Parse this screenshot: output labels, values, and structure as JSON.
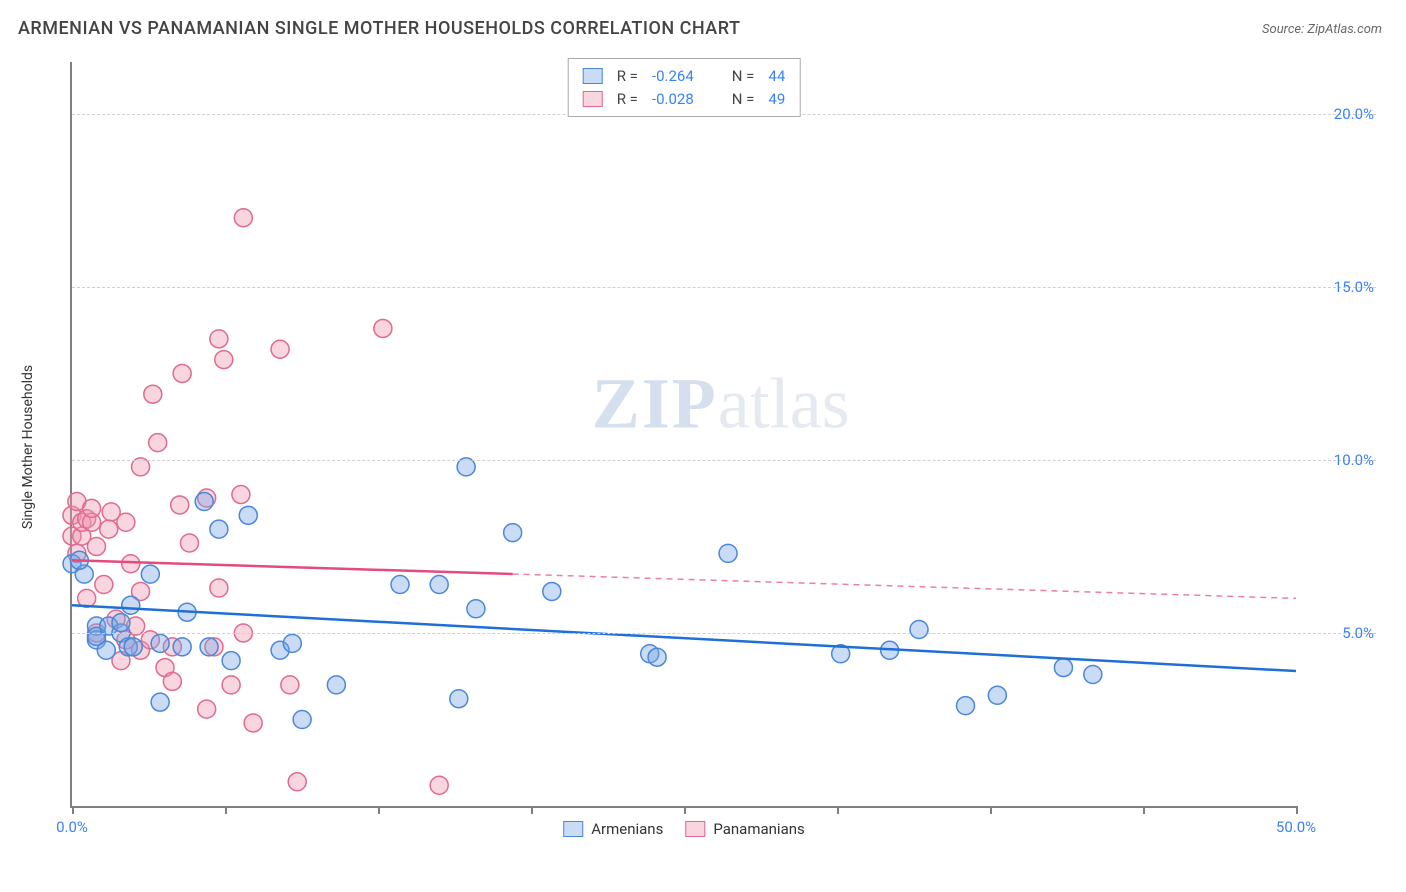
{
  "title": "ARMENIAN VS PANAMANIAN SINGLE MOTHER HOUSEHOLDS CORRELATION CHART",
  "source_label": "Source: ZipAtlas.com",
  "watermark_zip": "ZIP",
  "watermark_atlas": "atlas",
  "ylabel": "Single Mother Households",
  "chart": {
    "type": "scatter-with-regression",
    "background_color": "#ffffff",
    "grid_color": "#d0d0d0",
    "axis_color": "#808080",
    "marker_radius": 9,
    "marker_stroke_width": 1.5,
    "line_width": 2.5,
    "xlim": [
      0,
      50
    ],
    "ylim": [
      0,
      21.5
    ],
    "xticks": [
      0,
      6.25,
      12.5,
      18.75,
      25,
      31.25,
      37.5,
      43.75,
      50
    ],
    "x_labeled_ticks": [
      {
        "pos": 0,
        "label": "0.0%"
      },
      {
        "pos": 50,
        "label": "50.0%"
      }
    ],
    "yticks": [
      {
        "pos": 5,
        "label": "5.0%"
      },
      {
        "pos": 10,
        "label": "10.0%"
      },
      {
        "pos": 15,
        "label": "15.0%"
      },
      {
        "pos": 20,
        "label": "20.0%"
      }
    ],
    "tick_label_color": "#3b82f6",
    "tick_label_fontsize": 15,
    "title_fontsize": 18,
    "ylabel_fontsize": 14,
    "series": [
      {
        "name": "Armenians",
        "fill_color": "rgba(120,165,230,0.4)",
        "stroke_color": "#4a88d8",
        "line_color": "#1f6fd8",
        "R": "-0.264",
        "N": "44",
        "regression": {
          "x1": 0,
          "y1": 5.8,
          "x2": 50,
          "y2": 3.9
        },
        "regression_solid_end_x": 50,
        "points": [
          [
            0,
            7.0
          ],
          [
            0.5,
            6.7
          ],
          [
            0.3,
            7.1
          ],
          [
            1,
            5.2
          ],
          [
            1,
            4.8
          ],
          [
            1.4,
            4.5
          ],
          [
            1,
            4.9
          ],
          [
            1.5,
            5.2
          ],
          [
            2,
            5.0
          ],
          [
            2,
            5.3
          ],
          [
            2.3,
            4.6
          ],
          [
            2.5,
            4.6
          ],
          [
            2.4,
            5.8
          ],
          [
            3.2,
            6.7
          ],
          [
            3.6,
            4.7
          ],
          [
            3.6,
            3.0
          ],
          [
            4.5,
            4.6
          ],
          [
            5.4,
            8.8
          ],
          [
            5.6,
            4.6
          ],
          [
            4.7,
            5.6
          ],
          [
            6.0,
            8.0
          ],
          [
            6.5,
            4.2
          ],
          [
            7.2,
            8.4
          ],
          [
            8.5,
            4.5
          ],
          [
            9.0,
            4.7
          ],
          [
            9.4,
            2.5
          ],
          [
            10.8,
            3.5
          ],
          [
            13.4,
            6.4
          ],
          [
            15.0,
            6.4
          ],
          [
            15.8,
            3.1
          ],
          [
            16.5,
            5.7
          ],
          [
            16.1,
            9.8
          ],
          [
            18.0,
            7.9
          ],
          [
            19.6,
            6.2
          ],
          [
            23.6,
            4.4
          ],
          [
            23.9,
            4.3
          ],
          [
            26.8,
            7.3
          ],
          [
            31.4,
            4.4
          ],
          [
            33.4,
            4.5
          ],
          [
            36.5,
            2.9
          ],
          [
            34.6,
            5.1
          ],
          [
            37.8,
            3.2
          ],
          [
            40.5,
            4.0
          ],
          [
            41.7,
            3.8
          ]
        ]
      },
      {
        "name": "Panamanians",
        "fill_color": "rgba(240,150,175,0.4)",
        "stroke_color": "#e06a90",
        "line_color": "#e24a80",
        "R": "-0.028",
        "N": "49",
        "regression": {
          "x1": 0,
          "y1": 7.1,
          "x2": 50,
          "y2": 6.0
        },
        "regression_solid_end_x": 18,
        "points": [
          [
            0,
            7.8
          ],
          [
            0,
            8.4
          ],
          [
            0.2,
            8.8
          ],
          [
            0.2,
            7.3
          ],
          [
            0.4,
            7.8
          ],
          [
            0.4,
            8.2
          ],
          [
            0.6,
            8.3
          ],
          [
            0.6,
            6.0
          ],
          [
            0.8,
            8.2
          ],
          [
            0.8,
            8.6
          ],
          [
            1,
            7.5
          ],
          [
            1.0,
            5.0
          ],
          [
            1.3,
            6.4
          ],
          [
            1.5,
            8.0
          ],
          [
            1.6,
            8.5
          ],
          [
            1.8,
            5.4
          ],
          [
            2.0,
            4.2
          ],
          [
            2.2,
            4.8
          ],
          [
            2.2,
            8.2
          ],
          [
            2.4,
            7.0
          ],
          [
            2.6,
            5.2
          ],
          [
            2.8,
            4.5
          ],
          [
            2.8,
            6.2
          ],
          [
            2.8,
            9.8
          ],
          [
            3.2,
            4.8
          ],
          [
            3.3,
            11.9
          ],
          [
            3.5,
            10.5
          ],
          [
            3.8,
            4.0
          ],
          [
            4.1,
            3.6
          ],
          [
            4.1,
            4.6
          ],
          [
            4.4,
            8.7
          ],
          [
            4.5,
            12.5
          ],
          [
            4.8,
            7.6
          ],
          [
            5.5,
            8.9
          ],
          [
            5.5,
            2.8
          ],
          [
            5.8,
            4.6
          ],
          [
            6.0,
            13.5
          ],
          [
            6.2,
            12.9
          ],
          [
            6.0,
            6.3
          ],
          [
            6.5,
            3.5
          ],
          [
            6.9,
            9.0
          ],
          [
            7.0,
            17.0
          ],
          [
            7.0,
            5.0
          ],
          [
            7.4,
            2.4
          ],
          [
            8.5,
            13.2
          ],
          [
            8.9,
            3.5
          ],
          [
            9.2,
            0.7
          ],
          [
            12.7,
            13.8
          ],
          [
            15.0,
            0.6
          ]
        ]
      }
    ]
  },
  "stats_box": {
    "r_label": "R =",
    "n_label": "N ="
  },
  "legend": {
    "series1": "Armenians",
    "series2": "Panamanians"
  }
}
